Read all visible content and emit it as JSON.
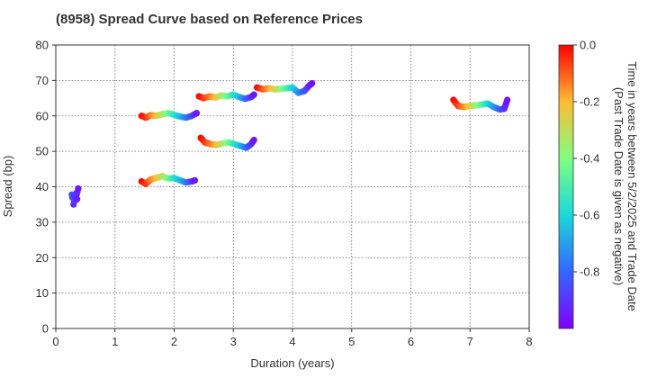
{
  "chart_data": {
    "type": "scatter",
    "title": "(8958)   Spread Curve based on Reference Prices",
    "xlabel": "Duration (years)",
    "ylabel": "Spread (bp)",
    "xlim": [
      0,
      8
    ],
    "ylim": [
      0,
      80
    ],
    "xticks": [
      "0",
      "1",
      "2",
      "3",
      "4",
      "5",
      "6",
      "7",
      "8"
    ],
    "yticks": [
      "0",
      "10",
      "20",
      "30",
      "40",
      "50",
      "60",
      "70",
      "80"
    ],
    "grid": true,
    "colorbar": {
      "label_line1": "Time in years between 5/2/2025 and Trade Date",
      "label_line2": "(Past Trade Date is given as negative)",
      "range": [
        -1.0,
        0.0
      ],
      "ticks": [
        "0.0",
        "-0.2",
        "-0.4",
        "-0.6",
        "-0.8"
      ],
      "colormap": "rainbow"
    },
    "series": [
      {
        "points": [
          [
            0.33,
            37.5,
            -0.8
          ],
          [
            0.28,
            37.0,
            -0.85
          ],
          [
            0.35,
            38.2,
            -0.88
          ],
          [
            0.3,
            35.0,
            -0.92
          ],
          [
            0.38,
            39.5,
            -0.96
          ],
          [
            0.32,
            36.0,
            -0.9
          ],
          [
            0.27,
            37.8,
            -0.83
          ],
          [
            0.36,
            36.5,
            -0.94
          ]
        ]
      },
      {
        "points": [
          [
            1.45,
            41.5,
            0.0
          ],
          [
            1.52,
            40.8,
            -0.05
          ],
          [
            1.6,
            42.0,
            -0.12
          ],
          [
            1.7,
            42.5,
            -0.2
          ],
          [
            1.8,
            43.0,
            -0.3
          ],
          [
            1.9,
            42.3,
            -0.42
          ],
          [
            2.0,
            42.5,
            -0.55
          ],
          [
            2.1,
            41.8,
            -0.65
          ],
          [
            2.2,
            41.2,
            -0.75
          ],
          [
            2.3,
            41.5,
            -0.88
          ],
          [
            2.35,
            41.8,
            -0.95
          ]
        ]
      },
      {
        "points": [
          [
            1.45,
            60.0,
            0.0
          ],
          [
            1.52,
            59.5,
            -0.04
          ],
          [
            1.6,
            60.2,
            -0.12
          ],
          [
            1.7,
            60.0,
            -0.2
          ],
          [
            1.8,
            60.5,
            -0.32
          ],
          [
            1.9,
            60.8,
            -0.42
          ],
          [
            2.0,
            60.3,
            -0.55
          ],
          [
            2.1,
            59.8,
            -0.65
          ],
          [
            2.2,
            59.5,
            -0.75
          ],
          [
            2.3,
            60.0,
            -0.85
          ],
          [
            2.38,
            60.8,
            -0.95
          ]
        ]
      },
      {
        "points": [
          [
            2.42,
            65.5,
            0.0
          ],
          [
            2.5,
            65.0,
            -0.05
          ],
          [
            2.6,
            65.5,
            -0.12
          ],
          [
            2.7,
            65.2,
            -0.2
          ],
          [
            2.8,
            65.8,
            -0.32
          ],
          [
            2.9,
            65.5,
            -0.42
          ],
          [
            3.0,
            66.0,
            -0.55
          ],
          [
            3.1,
            65.3,
            -0.65
          ],
          [
            3.2,
            64.8,
            -0.78
          ],
          [
            3.3,
            65.3,
            -0.88
          ],
          [
            3.35,
            66.0,
            -0.96
          ]
        ]
      },
      {
        "points": [
          [
            2.45,
            53.8,
            0.0
          ],
          [
            2.52,
            52.5,
            -0.05
          ],
          [
            2.62,
            52.0,
            -0.12
          ],
          [
            2.72,
            51.8,
            -0.2
          ],
          [
            2.82,
            52.2,
            -0.32
          ],
          [
            2.92,
            52.5,
            -0.42
          ],
          [
            3.02,
            52.0,
            -0.55
          ],
          [
            3.12,
            51.5,
            -0.65
          ],
          [
            3.22,
            51.0,
            -0.78
          ],
          [
            3.3,
            52.0,
            -0.88
          ],
          [
            3.35,
            53.2,
            -0.96
          ]
        ]
      },
      {
        "points": [
          [
            3.4,
            68.0,
            0.0
          ],
          [
            3.5,
            67.5,
            -0.08
          ],
          [
            3.6,
            67.8,
            -0.16
          ],
          [
            3.7,
            67.5,
            -0.25
          ],
          [
            3.8,
            67.6,
            -0.36
          ],
          [
            3.9,
            67.8,
            -0.48
          ],
          [
            4.0,
            68.0,
            -0.6
          ],
          [
            4.1,
            66.5,
            -0.72
          ],
          [
            4.2,
            67.0,
            -0.82
          ],
          [
            4.28,
            68.5,
            -0.92
          ],
          [
            4.33,
            69.2,
            -0.97
          ]
        ]
      },
      {
        "points": [
          [
            6.72,
            64.5,
            0.0
          ],
          [
            6.8,
            62.8,
            -0.06
          ],
          [
            6.9,
            62.5,
            -0.14
          ],
          [
            7.0,
            62.8,
            -0.24
          ],
          [
            7.1,
            63.0,
            -0.35
          ],
          [
            7.2,
            63.2,
            -0.46
          ],
          [
            7.3,
            63.5,
            -0.58
          ],
          [
            7.4,
            62.5,
            -0.7
          ],
          [
            7.5,
            61.8,
            -0.8
          ],
          [
            7.58,
            62.0,
            -0.9
          ],
          [
            7.63,
            64.5,
            -0.97
          ]
        ]
      }
    ]
  }
}
